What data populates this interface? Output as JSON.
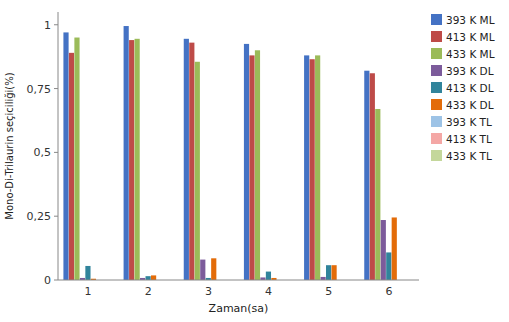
{
  "chart_data": {
    "type": "bar",
    "xlabel": "Zaman(sa)",
    "ylabel": "Mono-Di-Trilaurin seçiciliği(%)",
    "categories": [
      1,
      2,
      3,
      4,
      5,
      6
    ],
    "series": [
      {
        "name": "393 K ML",
        "color": "#4472C4",
        "values": [
          0.97,
          0.995,
          0.945,
          0.925,
          0.88,
          0.82
        ]
      },
      {
        "name": "413 K ML",
        "color": "#BE4B48",
        "values": [
          0.89,
          0.94,
          0.93,
          0.88,
          0.865,
          0.81
        ]
      },
      {
        "name": "433 K ML",
        "color": "#9BBB59",
        "values": [
          0.95,
          0.945,
          0.855,
          0.9,
          0.88,
          0.67
        ]
      },
      {
        "name": "393 K DL",
        "color": "#7C5B9B",
        "values": [
          0.008,
          0.008,
          0.08,
          0.01,
          0.012,
          0.235
        ]
      },
      {
        "name": "413 K DL",
        "color": "#31849B",
        "values": [
          0.055,
          0.015,
          0.008,
          0.033,
          0.058,
          0.108
        ]
      },
      {
        "name": "433 K DL",
        "color": "#E36C09",
        "values": [
          0.005,
          0.018,
          0.085,
          0.008,
          0.058,
          0.245
        ]
      },
      {
        "name": "393 K TL",
        "color": "#9DC3E6",
        "values": [
          0.0,
          0.0,
          0.0,
          0.0,
          0.0,
          0.0
        ]
      },
      {
        "name": "413 K TL",
        "color": "#F4A7A5",
        "values": [
          0.0,
          0.0,
          0.0,
          0.0,
          0.0,
          0.0
        ]
      },
      {
        "name": "433 K TL",
        "color": "#C4D79B",
        "values": [
          0.0,
          0.0,
          0.0,
          0.0,
          0.0,
          0.0
        ]
      }
    ],
    "ylim": [
      0,
      1.05
    ],
    "yticks": [
      0,
      {
        "value": 0.25,
        "label": "0,25"
      },
      {
        "value": 0.5,
        "label": "0,5"
      },
      {
        "value": 0.75,
        "label": "0,75"
      },
      1
    ],
    "grid": false,
    "legend": "right"
  }
}
